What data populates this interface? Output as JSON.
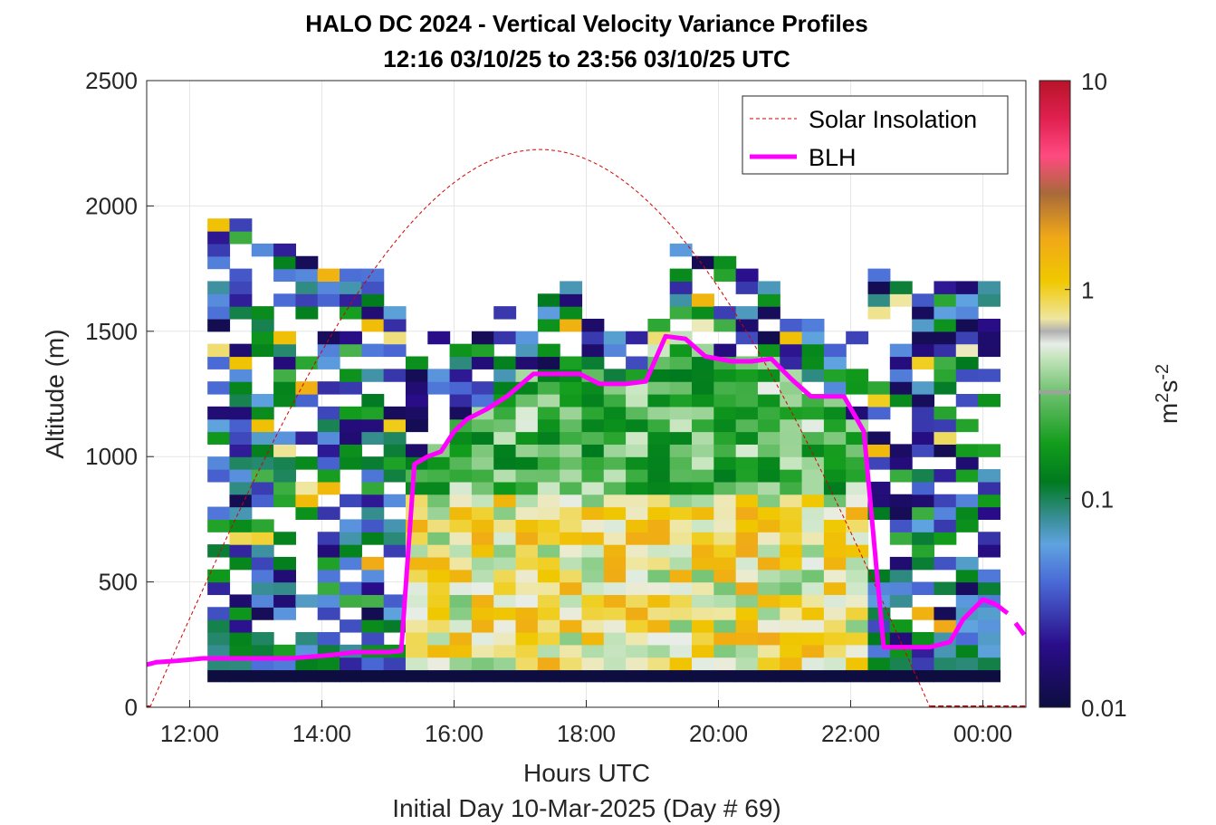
{
  "chart_data": {
    "type": "heatmap",
    "title": "HALO DC 2024 - Vertical Velocity Variance Profiles",
    "subtitle": "12:16 03/10/25 to 23:56 03/10/25  UTC",
    "xlabel": "Hours UTC",
    "xlabel2": "Initial Day 10-Mar-2025 (Day # 69)",
    "ylabel": "Altitude (m)",
    "colorbar_label": "m²s⁻²",
    "colorbar_scale": "log",
    "colorbar_range": [
      0.01,
      10
    ],
    "colorbar_ticks": [
      "0.01",
      "0.1",
      "1",
      "10"
    ],
    "xlim": [
      11.35,
      24.65
    ],
    "ylim": [
      0,
      2500
    ],
    "x_ticks": [
      {
        "value": 12,
        "label": "12:00"
      },
      {
        "value": 14,
        "label": "14:00"
      },
      {
        "value": 16,
        "label": "16:00"
      },
      {
        "value": 18,
        "label": "18:00"
      },
      {
        "value": 20,
        "label": "20:00"
      },
      {
        "value": 22,
        "label": "22:00"
      },
      {
        "value": 24,
        "label": "00:00"
      }
    ],
    "y_ticks": [
      "0",
      "500",
      "1000",
      "1500",
      "2000",
      "2500"
    ],
    "grid": true,
    "legend_position": "top-right",
    "legend": [
      "Solar Insolation",
      "BLH"
    ],
    "colors": {
      "blh": "#ff00ff",
      "insolation": "#d40000"
    },
    "heatmap": {
      "x_start": 12.27,
      "x_step": 0.333,
      "n_cols": 36,
      "y_start": 100,
      "y_step": 50,
      "description": "variance colour blocks per time column, log10 values"
    },
    "blh": {
      "x": [
        11.35,
        11.5,
        11.8,
        12.2,
        12.5,
        13.0,
        13.5,
        14.0,
        14.2,
        14.5,
        15.0,
        15.2,
        15.4,
        15.6,
        15.8,
        16.0,
        16.2,
        16.5,
        16.8,
        17.2,
        17.5,
        17.9,
        18.2,
        18.6,
        18.9,
        19.2,
        19.5,
        19.8,
        20.2,
        20.5,
        20.8,
        21.1,
        21.4,
        21.6,
        21.9,
        22.2,
        22.5,
        22.9,
        23.2,
        23.5,
        23.7,
        24.0,
        24.2
      ],
      "y": [
        170,
        180,
        185,
        195,
        195,
        195,
        195,
        205,
        210,
        220,
        220,
        225,
        970,
        1000,
        1020,
        1100,
        1150,
        1190,
        1240,
        1330,
        1330,
        1330,
        1290,
        1290,
        1300,
        1480,
        1470,
        1400,
        1380,
        1380,
        1390,
        1310,
        1240,
        1240,
        1240,
        1100,
        240,
        240,
        240,
        260,
        350,
        430,
        410
      ],
      "dashed_tail_x": [
        24.2,
        24.4,
        24.65
      ],
      "dashed_tail_y": [
        410,
        370,
        280
      ]
    },
    "solar_insolation": {
      "sunrise": 11.4,
      "sunset": 23.2,
      "peak_hour": 17.3,
      "peak_altitude_equiv": 2225
    }
  }
}
